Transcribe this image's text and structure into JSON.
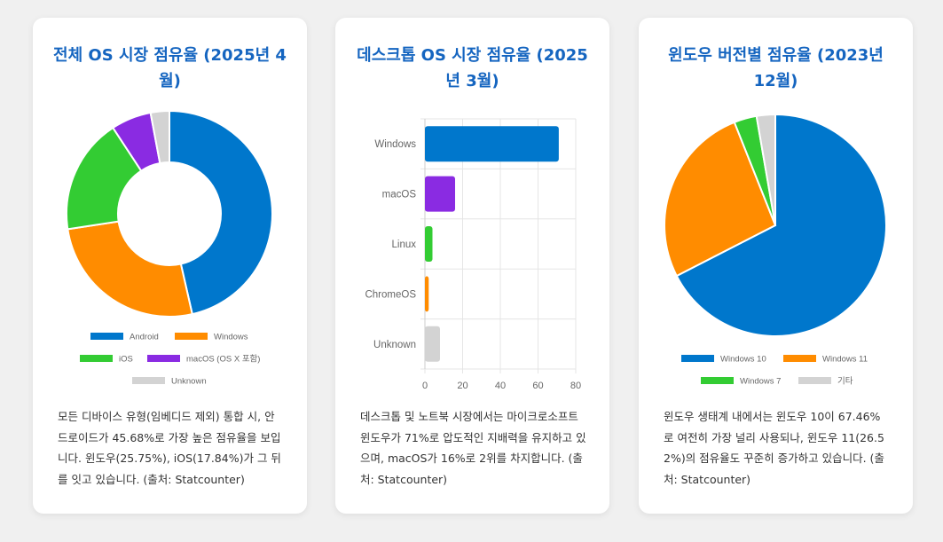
{
  "cards": [
    {
      "title": "전체 OS 시장 점유율 (2025년 4월)",
      "description": "모든 디바이스 유형(임베디드 제외) 통합 시, 안드로이드가 45.68%로 가장 높은 점유율을 보입니다. 윈도우(25.75%), iOS(17.84%)가 그 뒤를 잇고 있습니다. (출처: Statcounter)"
    },
    {
      "title": "데스크톱 OS 시장 점유율 (2025년 3월)",
      "description": "데스크톱 및 노트북 시장에서는 마이크로소프트 윈도우가 71%로 압도적인 지배력을 유지하고 있으며, macOS가 16%로 2위를 차지합니다. (출처: Statcounter)"
    },
    {
      "title": "윈도우 버전별 점유율 (2023년 12월)",
      "description": "윈도우 생태계 내에서는 윈도우 10이 67.46%로 여전히 가장 널리 사용되나, 윈도우 11(26.52%)의 점유율도 꾸준히 증가하고 있습니다. (출처: Statcounter)"
    }
  ],
  "chart_data": [
    {
      "type": "pie",
      "variant": "doughnut",
      "title": "전체 OS 시장 점유율 (2025년 4월)",
      "categories": [
        "Android",
        "Windows",
        "iOS",
        "macOS (OS X 포함)",
        "Unknown"
      ],
      "values": [
        45.68,
        25.75,
        17.84,
        6.2,
        2.9
      ],
      "colors": [
        "#0077cc",
        "#ff8c00",
        "#33cc33",
        "#8a2be2",
        "#d3d3d3"
      ],
      "legend": "bottom"
    },
    {
      "type": "bar",
      "orientation": "horizontal",
      "title": "데스크톱 OS 시장 점유율 (2025년 3월)",
      "categories": [
        "Windows",
        "macOS",
        "Linux",
        "ChromeOS",
        "Unknown"
      ],
      "values": [
        71,
        16,
        4,
        2,
        8
      ],
      "colors": [
        "#0077cc",
        "#8a2be2",
        "#33cc33",
        "#ff8c00",
        "#d3d3d3"
      ],
      "xlim": [
        0,
        80
      ],
      "xticks": [
        0,
        20,
        40,
        60,
        80
      ],
      "grid": true,
      "legend": "none"
    },
    {
      "type": "pie",
      "title": "윈도우 버전별 점유율 (2023년 12월)",
      "categories": [
        "Windows 10",
        "Windows 11",
        "Windows 7",
        "기타"
      ],
      "values": [
        67.46,
        26.52,
        3.3,
        2.72
      ],
      "colors": [
        "#0077cc",
        "#ff8c00",
        "#33cc33",
        "#d3d3d3"
      ],
      "legend": "bottom"
    }
  ]
}
